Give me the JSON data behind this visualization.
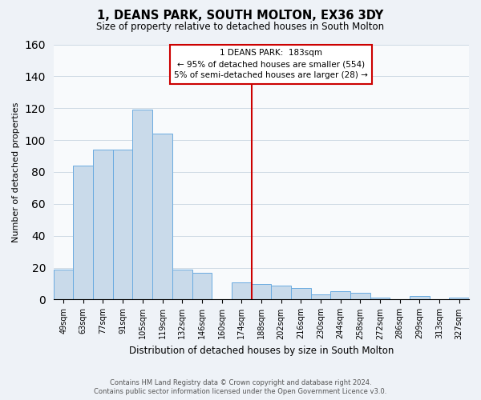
{
  "title": "1, DEANS PARK, SOUTH MOLTON, EX36 3DY",
  "subtitle": "Size of property relative to detached houses in South Molton",
  "xlabel": "Distribution of detached houses by size in South Molton",
  "ylabel": "Number of detached properties",
  "bar_labels": [
    "49sqm",
    "63sqm",
    "77sqm",
    "91sqm",
    "105sqm",
    "119sqm",
    "132sqm",
    "146sqm",
    "160sqm",
    "174sqm",
    "188sqm",
    "202sqm",
    "216sqm",
    "230sqm",
    "244sqm",
    "258sqm",
    "272sqm",
    "286sqm",
    "299sqm",
    "313sqm",
    "327sqm"
  ],
  "bar_heights": [
    19,
    84,
    94,
    94,
    119,
    104,
    19,
    17,
    0,
    11,
    10,
    9,
    7,
    3,
    5,
    4,
    1,
    0,
    2,
    0,
    1
  ],
  "bar_color": "#c9daea",
  "bar_edge_color": "#6aabe0",
  "vline_color": "#cc0000",
  "vline_index": 10,
  "annotation_line0": "1 DEANS PARK:  183sqm",
  "annotation_line1": "← 95% of detached houses are smaller (554)",
  "annotation_line2": "5% of semi-detached houses are larger (28) →",
  "annotation_box_color": "#ffffff",
  "annotation_box_edge": "#cc0000",
  "footer1": "Contains HM Land Registry data © Crown copyright and database right 2024.",
  "footer2": "Contains public sector information licensed under the Open Government Licence v3.0.",
  "ylim": [
    0,
    160
  ],
  "background_color": "#eef2f7",
  "plot_background": "#f8fafc",
  "grid_color": "#c8d4e0"
}
